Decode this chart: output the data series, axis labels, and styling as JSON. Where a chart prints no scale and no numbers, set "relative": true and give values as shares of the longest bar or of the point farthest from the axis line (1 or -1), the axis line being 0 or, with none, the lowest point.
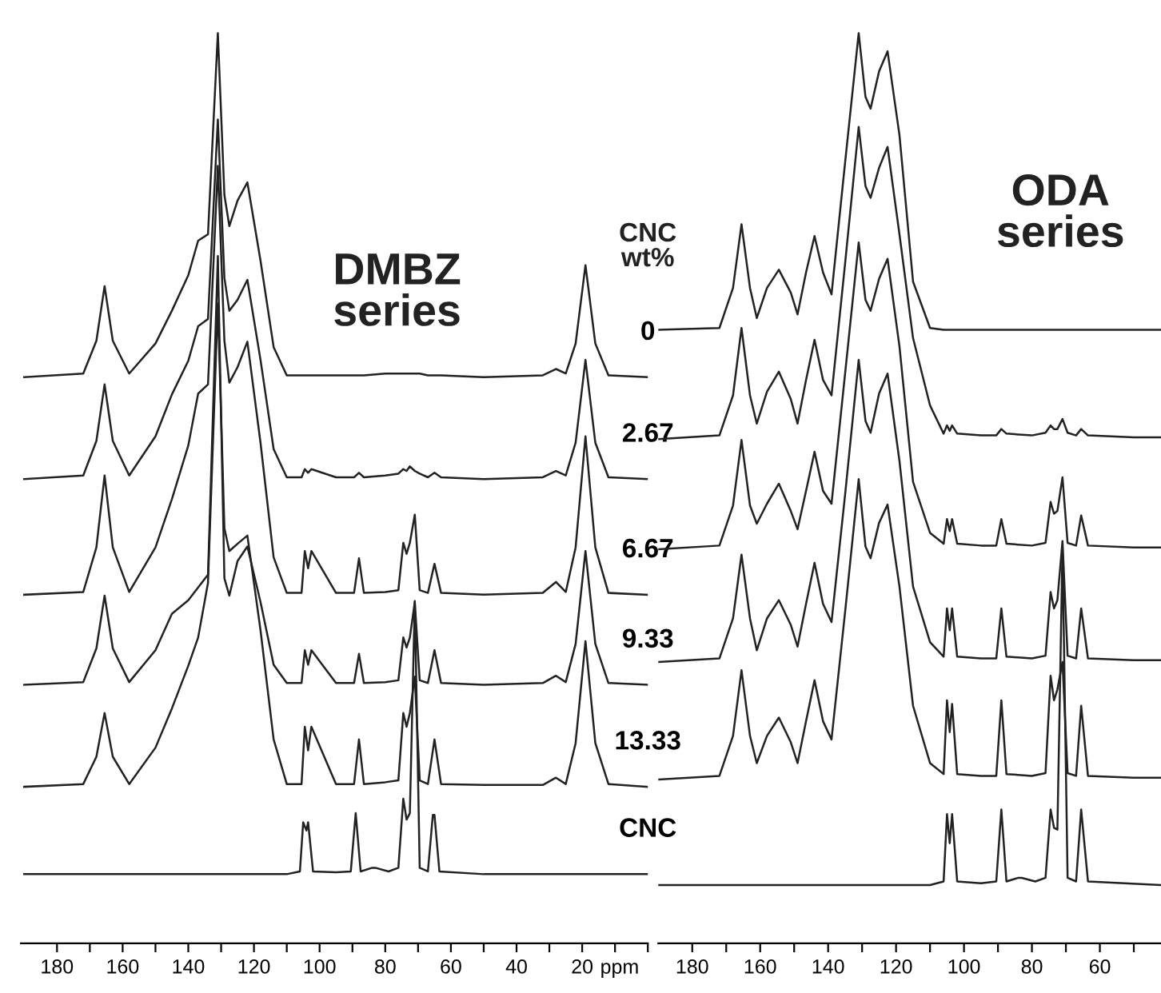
{
  "chart_data": [
    {
      "type": "line",
      "relative": true,
      "xlabel": "ppm",
      "xlim": [
        191,
        0
      ],
      "xticks": [
        180,
        {
          "value": 170,
          "label": null
        },
        160,
        {
          "value": 150,
          "label": null
        },
        140,
        {
          "value": 130,
          "label": null
        },
        120,
        {
          "value": 110,
          "label": null
        },
        100,
        {
          "value": 90,
          "label": null
        },
        80,
        {
          "value": 70,
          "label": null
        },
        60,
        {
          "value": 50,
          "label": null
        },
        40,
        {
          "value": 30,
          "label": null
        },
        20,
        {
          "value": 10,
          "label": null
        },
        {
          "value": 0,
          "label": null
        }
      ],
      "annotations": [
        "DMBZ\nseries",
        "CNC\nwt%"
      ],
      "series": [
        {
          "name": "0",
          "color": "#222222",
          "x": [
            190,
            172,
            168,
            165.5,
            163,
            158,
            150,
            145,
            140,
            137,
            134,
            131,
            129,
            127.5,
            125,
            122,
            118,
            114,
            110,
            105.5,
            104.5,
            103.5,
            102.5,
            95,
            89.5,
            88,
            86.5,
            80,
            76,
            74.5,
            73.5,
            72.5,
            71,
            69.5,
            67,
            65,
            63,
            50,
            32,
            28,
            25,
            22,
            19,
            16,
            12,
            0
          ],
          "values": [
            0.622,
            0.626,
            0.662,
            0.722,
            0.662,
            0.626,
            0.659,
            0.695,
            0.734,
            0.772,
            0.779,
            1.0,
            0.822,
            0.788,
            0.816,
            0.836,
            0.75,
            0.655,
            0.624,
            0.624,
            0.624,
            0.624,
            0.624,
            0.624,
            0.624,
            0.624,
            0.624,
            0.626,
            0.626,
            0.626,
            0.626,
            0.626,
            0.626,
            0.626,
            0.624,
            0.624,
            0.624,
            0.622,
            0.624,
            0.631,
            0.626,
            0.659,
            0.745,
            0.659,
            0.624,
            0.622
          ]
        },
        {
          "name": "2.67",
          "color": "#222222",
          "x": [
            190,
            172,
            168,
            165.5,
            163,
            158,
            150,
            145,
            140,
            137,
            134,
            131,
            129,
            127.5,
            125,
            122,
            118,
            114,
            110,
            105.5,
            104.5,
            103.5,
            102.5,
            95,
            89.5,
            88,
            86.5,
            80,
            76,
            74.5,
            73.5,
            72.5,
            71,
            69.5,
            67,
            65,
            63,
            50,
            32,
            28,
            25,
            22,
            19,
            16,
            12,
            0
          ],
          "values": [
            0.51,
            0.514,
            0.552,
            0.614,
            0.552,
            0.514,
            0.557,
            0.603,
            0.64,
            0.678,
            0.686,
            0.905,
            0.731,
            0.695,
            0.707,
            0.729,
            0.641,
            0.543,
            0.512,
            0.512,
            0.521,
            0.517,
            0.521,
            0.512,
            0.512,
            0.517,
            0.512,
            0.514,
            0.516,
            0.521,
            0.519,
            0.524,
            0.519,
            0.516,
            0.512,
            0.517,
            0.512,
            0.51,
            0.512,
            0.519,
            0.514,
            0.55,
            0.641,
            0.55,
            0.512,
            0.51
          ]
        },
        {
          "name": "6.67",
          "color": "#222222",
          "x": [
            190,
            172,
            168,
            165.5,
            163,
            158,
            150,
            145,
            140,
            137,
            134,
            131,
            129,
            127.5,
            125,
            122,
            118,
            114,
            110,
            105.5,
            104.5,
            103.5,
            102.5,
            95,
            89.5,
            88,
            86.5,
            80,
            76,
            74.5,
            73.5,
            72.5,
            71,
            69.5,
            67,
            65,
            63,
            50,
            32,
            28,
            25,
            22,
            19,
            16,
            12,
            0
          ],
          "values": [
            0.383,
            0.386,
            0.435,
            0.514,
            0.435,
            0.386,
            0.435,
            0.488,
            0.547,
            0.604,
            0.614,
            0.854,
            0.662,
            0.616,
            0.633,
            0.661,
            0.55,
            0.424,
            0.385,
            0.385,
            0.431,
            0.412,
            0.431,
            0.385,
            0.385,
            0.423,
            0.385,
            0.386,
            0.388,
            0.44,
            0.428,
            0.44,
            0.471,
            0.388,
            0.385,
            0.417,
            0.385,
            0.383,
            0.385,
            0.397,
            0.386,
            0.435,
            0.557,
            0.435,
            0.385,
            0.383
          ]
        },
        {
          "name": "9.33",
          "color": "#222222",
          "x": [
            190,
            172,
            168,
            165.5,
            163,
            158,
            150,
            145,
            140,
            137,
            134,
            131,
            129,
            127.5,
            125,
            122,
            118,
            114,
            110,
            105.5,
            104.5,
            103.5,
            102.5,
            95,
            89.5,
            88,
            86.5,
            80,
            76,
            74.5,
            73.5,
            72.5,
            71,
            69.5,
            67,
            65,
            63,
            50,
            32,
            28,
            25,
            22,
            19,
            16,
            12,
            0
          ],
          "values": [
            0.284,
            0.287,
            0.324,
            0.382,
            0.324,
            0.287,
            0.322,
            0.362,
            0.377,
            0.391,
            0.405,
            0.755,
            0.401,
            0.382,
            0.42,
            0.436,
            0.375,
            0.306,
            0.286,
            0.286,
            0.322,
            0.306,
            0.322,
            0.286,
            0.286,
            0.318,
            0.286,
            0.287,
            0.289,
            0.336,
            0.325,
            0.336,
            0.375,
            0.289,
            0.286,
            0.322,
            0.286,
            0.284,
            0.286,
            0.294,
            0.287,
            0.329,
            0.431,
            0.329,
            0.286,
            0.284
          ]
        },
        {
          "name": "13.33",
          "color": "#222222",
          "x": [
            190,
            172,
            168,
            165.5,
            163,
            158,
            150,
            145,
            140,
            137,
            134,
            131,
            129,
            127.5,
            125,
            122,
            118,
            114,
            110,
            105.5,
            104.5,
            103.5,
            102.5,
            95,
            89.5,
            88,
            86.5,
            80,
            76,
            74.5,
            73.5,
            72.5,
            71,
            69.5,
            67,
            65,
            63,
            50,
            32,
            28,
            25,
            22,
            19,
            16,
            12,
            0
          ],
          "values": [
            0.172,
            0.175,
            0.205,
            0.253,
            0.205,
            0.175,
            0.215,
            0.258,
            0.305,
            0.336,
            0.396,
            0.703,
            0.456,
            0.431,
            0.439,
            0.448,
            0.344,
            0.224,
            0.175,
            0.175,
            0.238,
            0.212,
            0.238,
            0.175,
            0.175,
            0.224,
            0.175,
            0.177,
            0.179,
            0.253,
            0.238,
            0.253,
            0.293,
            0.179,
            0.175,
            0.224,
            0.175,
            0.174,
            0.174,
            0.182,
            0.175,
            0.22,
            0.332,
            0.22,
            0.175,
            0.172
          ]
        },
        {
          "name": "CNC",
          "color": "#222222",
          "x": [
            190,
            110,
            106,
            105,
            104,
            103.5,
            102,
            95,
            90.5,
            89,
            87.5,
            84,
            83,
            79,
            76,
            74.5,
            73.5,
            72.5,
            71,
            69.5,
            67,
            65.5,
            65,
            63.5,
            50,
            0
          ],
          "values": [
            0.076,
            0.076,
            0.079,
            0.133,
            0.124,
            0.133,
            0.079,
            0.078,
            0.079,
            0.143,
            0.079,
            0.083,
            0.083,
            0.079,
            0.083,
            0.159,
            0.136,
            0.143,
            0.376,
            0.083,
            0.079,
            0.141,
            0.141,
            0.079,
            0.076,
            0.076
          ]
        }
      ]
    },
    {
      "type": "line",
      "relative": true,
      "xlim": [
        190,
        42
      ],
      "xticks": [
        180,
        {
          "value": 170,
          "label": null
        },
        160,
        {
          "value": 150,
          "label": null
        },
        140,
        {
          "value": 130,
          "label": null
        },
        120,
        {
          "value": 110,
          "label": null
        },
        100,
        {
          "value": 90,
          "label": null
        },
        80,
        {
          "value": 70,
          "label": null
        },
        60,
        {
          "value": 50,
          "label": null
        }
      ],
      "annotations": [
        "ODA\nseries"
      ],
      "series": [
        {
          "color": "#222222",
          "x": [
            190,
            172,
            168,
            165.5,
            163,
            161,
            158,
            154.5,
            151,
            149,
            146.5,
            144,
            141.5,
            139,
            135,
            131,
            129,
            127.5,
            125,
            122.5,
            119,
            115,
            110,
            106,
            105,
            104.2,
            103.5,
            102,
            95,
            90.5,
            89,
            87.5,
            80,
            76,
            74.5,
            73.5,
            72.5,
            71,
            69.5,
            67,
            65.5,
            63.5,
            50,
            42
          ],
          "values": [
            0.674,
            0.676,
            0.72,
            0.79,
            0.72,
            0.687,
            0.72,
            0.74,
            0.715,
            0.691,
            0.737,
            0.777,
            0.737,
            0.713,
            0.858,
            1.0,
            0.93,
            0.917,
            0.958,
            0.98,
            0.888,
            0.727,
            0.676,
            0.674,
            0.674,
            0.674,
            0.674,
            0.674,
            0.674,
            0.674,
            0.674,
            0.674,
            0.674,
            0.674,
            0.674,
            0.674,
            0.674,
            0.674,
            0.674,
            0.674,
            0.674,
            0.674,
            0.674,
            0.674
          ]
        },
        {
          "color": "#222222",
          "x": [
            190,
            172,
            168,
            165.5,
            163,
            161,
            158,
            154.5,
            151,
            149,
            146.5,
            144,
            141.5,
            139,
            135,
            131,
            129,
            127.5,
            125,
            122.5,
            119,
            115,
            110,
            106,
            105,
            104.2,
            103.5,
            102,
            95,
            90.5,
            89,
            87.5,
            80,
            76,
            74.5,
            73.5,
            72.5,
            71,
            69.5,
            67,
            65.5,
            63.5,
            50,
            42
          ],
          "values": [
            0.554,
            0.558,
            0.602,
            0.676,
            0.602,
            0.571,
            0.606,
            0.628,
            0.598,
            0.571,
            0.619,
            0.663,
            0.619,
            0.602,
            0.747,
            0.897,
            0.832,
            0.819,
            0.852,
            0.875,
            0.779,
            0.665,
            0.591,
            0.56,
            0.569,
            0.563,
            0.569,
            0.56,
            0.558,
            0.558,
            0.565,
            0.56,
            0.558,
            0.561,
            0.569,
            0.565,
            0.565,
            0.576,
            0.561,
            0.558,
            0.565,
            0.558,
            0.556,
            0.556
          ]
        },
        {
          "color": "#222222",
          "x": [
            190,
            172,
            168,
            165.5,
            163,
            161,
            158,
            154.5,
            151,
            149,
            146.5,
            144,
            141.5,
            139,
            135,
            131,
            129,
            127.5,
            125,
            122.5,
            119,
            115,
            110,
            106,
            105,
            104.2,
            103.5,
            102,
            95,
            90.5,
            89,
            87.5,
            80,
            76,
            74.5,
            73.5,
            72.5,
            71,
            69.5,
            67,
            65.5,
            63.5,
            50,
            42
          ],
          "values": [
            0.433,
            0.437,
            0.481,
            0.553,
            0.481,
            0.461,
            0.483,
            0.505,
            0.475,
            0.455,
            0.497,
            0.54,
            0.497,
            0.483,
            0.626,
            0.77,
            0.707,
            0.695,
            0.73,
            0.752,
            0.656,
            0.507,
            0.451,
            0.439,
            0.466,
            0.453,
            0.466,
            0.439,
            0.437,
            0.437,
            0.466,
            0.439,
            0.437,
            0.44,
            0.485,
            0.472,
            0.475,
            0.512,
            0.44,
            0.437,
            0.47,
            0.437,
            0.435,
            0.435
          ]
        },
        {
          "color": "#222222",
          "x": [
            190,
            172,
            168,
            165.5,
            163,
            161,
            158,
            154.5,
            151,
            149,
            146.5,
            144,
            141.5,
            139,
            135,
            131,
            129,
            127.5,
            125,
            122.5,
            119,
            115,
            110,
            106,
            105,
            104.2,
            103.5,
            102,
            95,
            90.5,
            89,
            87.5,
            80,
            76,
            74.5,
            73.5,
            72.5,
            71,
            69.5,
            67,
            65.5,
            63.5,
            50,
            42
          ],
          "values": [
            0.309,
            0.313,
            0.357,
            0.427,
            0.357,
            0.322,
            0.357,
            0.377,
            0.35,
            0.326,
            0.373,
            0.418,
            0.373,
            0.353,
            0.493,
            0.641,
            0.574,
            0.561,
            0.604,
            0.626,
            0.53,
            0.392,
            0.331,
            0.315,
            0.368,
            0.344,
            0.368,
            0.315,
            0.313,
            0.313,
            0.368,
            0.315,
            0.313,
            0.316,
            0.386,
            0.368,
            0.377,
            0.442,
            0.316,
            0.313,
            0.368,
            0.313,
            0.311,
            0.311
          ]
        },
        {
          "color": "#222222",
          "x": [
            190,
            172,
            168,
            165.5,
            163,
            161,
            158,
            154.5,
            151,
            149,
            146.5,
            144,
            141.5,
            139,
            135,
            131,
            129,
            127.5,
            125,
            122.5,
            119,
            115,
            110,
            106,
            105,
            104.2,
            103.5,
            102,
            95,
            90.5,
            89,
            87.5,
            80,
            76,
            74.5,
            73.5,
            72.5,
            71,
            69.5,
            67,
            65.5,
            63.5,
            50,
            42
          ],
          "values": [
            0.18,
            0.184,
            0.228,
            0.3,
            0.228,
            0.198,
            0.228,
            0.248,
            0.221,
            0.198,
            0.244,
            0.289,
            0.244,
            0.224,
            0.364,
            0.51,
            0.436,
            0.423,
            0.462,
            0.482,
            0.392,
            0.261,
            0.198,
            0.186,
            0.267,
            0.232,
            0.263,
            0.186,
            0.184,
            0.184,
            0.267,
            0.186,
            0.184,
            0.187,
            0.294,
            0.267,
            0.279,
            0.309,
            0.187,
            0.184,
            0.261,
            0.184,
            0.182,
            0.182
          ]
        },
        {
          "color": "#222222",
          "x": [
            190,
            110,
            106,
            105,
            104.2,
            103.5,
            102,
            95,
            90.5,
            89,
            87.5,
            84,
            83,
            79,
            76,
            74.5,
            73.5,
            72.5,
            71,
            69.5,
            67,
            65.5,
            63.5,
            42
          ],
          "values": [
            0.064,
            0.064,
            0.068,
            0.142,
            0.11,
            0.142,
            0.068,
            0.066,
            0.068,
            0.147,
            0.068,
            0.072,
            0.072,
            0.068,
            0.072,
            0.147,
            0.127,
            0.125,
            0.433,
            0.072,
            0.068,
            0.147,
            0.068,
            0.064
          ]
        }
      ]
    }
  ]
}
